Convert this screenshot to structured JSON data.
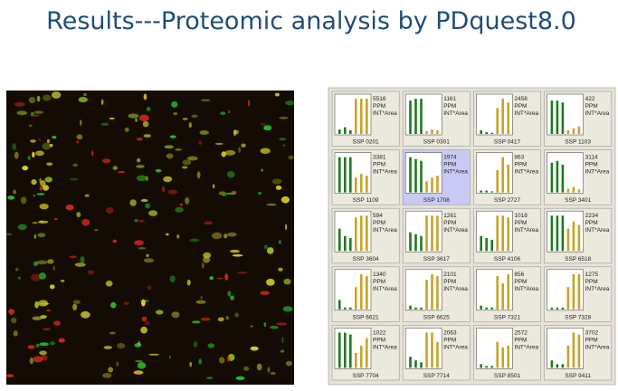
{
  "header": {
    "title": "Results---Proteomic analysis by PDquest8.0"
  },
  "panels": [
    {
      "value": 5516,
      "unit": "PPM",
      "measure": "INT*Area",
      "label": "SSP 0201",
      "green": [
        12,
        18,
        10
      ],
      "gold": [
        95,
        95,
        95
      ]
    },
    {
      "value": 1161,
      "unit": "PPM",
      "measure": "INT*Area",
      "label": "SSP 0301",
      "green": [
        90,
        95,
        95
      ],
      "gold": [
        8,
        12,
        10
      ]
    },
    {
      "value": 2458,
      "unit": "PPM",
      "measure": "INT*Area",
      "label": "SSP 0417",
      "green": [
        10,
        5,
        3
      ],
      "gold": [
        70,
        95,
        85
      ]
    },
    {
      "value": 422,
      "unit": "PPM",
      "measure": "INT*Area",
      "label": "SSP 1103",
      "green": [
        90,
        90,
        85
      ],
      "gold": [
        10,
        15,
        20
      ]
    },
    {
      "value": 3381,
      "unit": "PPM",
      "measure": "INT*Area",
      "label": "SSP 1109",
      "green": [
        95,
        95,
        95
      ],
      "gold": [
        40,
        50,
        45
      ]
    },
    {
      "value": 1974,
      "unit": "PPM",
      "measure": "INT*Area",
      "label": "SSP 1708",
      "green": [
        95,
        90,
        85
      ],
      "gold": [
        30,
        40,
        45
      ],
      "highlighted": true
    },
    {
      "value": 863,
      "unit": "PPM",
      "measure": "INT*Area",
      "label": "SSP 2727",
      "green": [
        5,
        5,
        3
      ],
      "gold": [
        60,
        95,
        75
      ]
    },
    {
      "value": 3114,
      "unit": "PPM",
      "measure": "INT*Area",
      "label": "SSP 3401",
      "green": [
        80,
        85,
        75
      ],
      "gold": [
        10,
        15,
        8
      ]
    },
    {
      "value": 594,
      "unit": "PPM",
      "measure": "INT*Area",
      "label": "SSP 3604",
      "green": [
        60,
        40,
        35
      ],
      "gold": [
        90,
        95,
        95
      ]
    },
    {
      "value": 1261,
      "unit": "PPM",
      "measure": "INT*Area",
      "label": "SSP 3617",
      "green": [
        50,
        45,
        40
      ],
      "gold": [
        95,
        95,
        95
      ]
    },
    {
      "value": 1018,
      "unit": "PPM",
      "measure": "INT*Area",
      "label": "SSP 4106",
      "green": [
        40,
        35,
        30
      ],
      "gold": [
        95,
        95,
        90
      ]
    },
    {
      "value": 2234,
      "unit": "PPM",
      "measure": "INT*Area",
      "label": "SSP 6518",
      "green": [
        95,
        95,
        95
      ],
      "gold": [
        60,
        80,
        70
      ]
    },
    {
      "value": 1340,
      "unit": "PPM",
      "measure": "INT*Area",
      "label": "SSP 6621",
      "green": [
        25,
        5,
        5
      ],
      "gold": [
        60,
        95,
        90
      ]
    },
    {
      "value": 2101,
      "unit": "PPM",
      "measure": "INT*Area",
      "label": "SSP 6625",
      "green": [
        10,
        5,
        5
      ],
      "gold": [
        80,
        95,
        90
      ]
    },
    {
      "value": 856,
      "unit": "PPM",
      "measure": "INT*Area",
      "label": "SSP 7321",
      "green": [
        10,
        5,
        5
      ],
      "gold": [
        90,
        70,
        95
      ]
    },
    {
      "value": 1275,
      "unit": "PPM",
      "measure": "INT*Area",
      "label": "SSP 7328",
      "green": [
        5,
        5,
        5
      ],
      "gold": [
        60,
        95,
        95
      ]
    },
    {
      "value": 1022,
      "unit": "PPM",
      "measure": "INT*Area",
      "label": "SSP 7704",
      "green": [
        95,
        95,
        90
      ],
      "gold": [
        40,
        60,
        80
      ]
    },
    {
      "value": 2063,
      "unit": "PPM",
      "measure": "INT*Area",
      "label": "SSP 7714",
      "green": [
        30,
        20,
        15
      ],
      "gold": [
        95,
        95,
        70
      ]
    },
    {
      "value": 2572,
      "unit": "PPM",
      "measure": "INT*Area",
      "label": "SSP 8501",
      "green": [
        10,
        5,
        5
      ],
      "gold": [
        70,
        55,
        60
      ]
    },
    {
      "value": 3702,
      "unit": "PPM",
      "measure": "INT*Area",
      "label": "SSP 9411",
      "green": [
        20,
        10,
        10
      ],
      "gold": [
        60,
        95,
        90
      ]
    }
  ]
}
